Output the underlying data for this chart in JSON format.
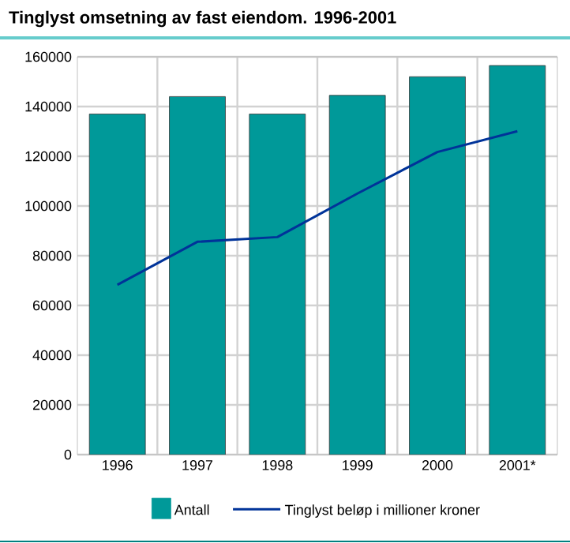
{
  "chart_data": {
    "type": "bar",
    "title": "Tinglyst omsetning av fast eiendom. 1996-2001",
    "categories": [
      "1996",
      "1997",
      "1998",
      "1999",
      "2000",
      "2001*"
    ],
    "series": [
      {
        "name": "Antall",
        "color": "#009999",
        "values": [
          137000,
          144000,
          137000,
          144500,
          152000,
          156500
        ]
      },
      {
        "name": "Tinglyst beløp i millioner kroner",
        "type": "line",
        "color": "#003399",
        "values": [
          68300,
          85600,
          87500,
          105000,
          121700,
          130100
        ]
      }
    ],
    "ylim": [
      0,
      160000
    ],
    "yticks": [
      0,
      20000,
      40000,
      60000,
      80000,
      100000,
      120000,
      140000,
      160000
    ],
    "grid": true,
    "legend": "bottom"
  }
}
